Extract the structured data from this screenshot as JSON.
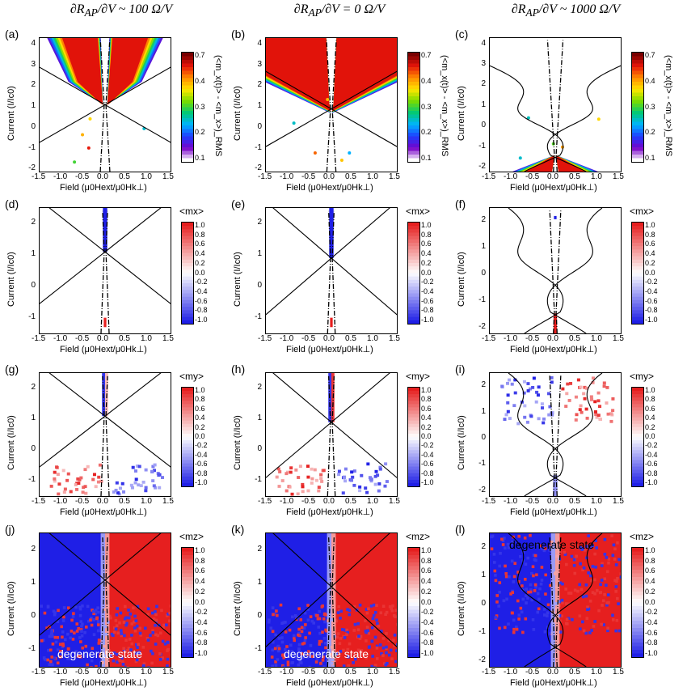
{
  "column_headers": [
    {
      "lhs": "∂R",
      "sub": "AP",
      "den": "∂V",
      "rel": "~ 100",
      "unit_num": "Ω",
      "unit_den": "V"
    },
    {
      "lhs": "∂R",
      "sub": "AP",
      "den": "∂V",
      "rel": "= 0",
      "unit_num": "Ω",
      "unit_den": "V"
    },
    {
      "lhs": "∂R",
      "sub": "AP",
      "den": "∂V",
      "rel": "~ 1000",
      "unit_num": "Ω",
      "unit_den": "V"
    }
  ],
  "axis_text": {
    "ylabel": "Current (I/I",
    "ylabel_sub": "c",
    "ylabel_sup": "0",
    "ylabel_end": ")",
    "xlabel": "Field (μ",
    "xlabel_sub1": "0",
    "xlabel_mid": "H",
    "xlabel_sub2": "ext",
    "xlabel_mid2": "/μ",
    "xlabel_sub3": "0",
    "xlabel_mid3": "H",
    "xlabel_sub4": "k⊥",
    "xlabel_end": ")"
  },
  "colors": {
    "blue": "#1f1fe6",
    "red": "#e61f1f",
    "white": "#ffffff",
    "dark_red": "#7a0000",
    "arrow": "#000000"
  },
  "chart_data": [
    {
      "panel": "(a)",
      "type": "heatmap",
      "quantity": "amplitude",
      "colorbar_title": "(<m_x(t)> - <m_x>)_RMS",
      "colorbar_ticks": [
        "0.7",
        "0.4",
        "0.3",
        "0.2",
        "0.1"
      ],
      "xlim": [
        -1.5,
        1.5
      ],
      "ylim": [
        -2.1,
        4.3
      ],
      "xticks": [
        "-1.5",
        "-1.0",
        "-0.5",
        "0.0",
        "0.5",
        "1.0",
        "1.5"
      ],
      "yticks": [
        "-2",
        "-1",
        "0",
        "1",
        "2",
        "3",
        "4"
      ],
      "crossing_current": 1.1,
      "boundary": "x",
      "region": "up_fan",
      "annotation": ""
    },
    {
      "panel": "(b)",
      "type": "heatmap",
      "quantity": "amplitude",
      "colorbar_title": "(<m_x(t)> - <m_x>)_RMS",
      "colorbar_ticks": [
        "0.7",
        "0.4",
        "0.3",
        "0.2",
        "0.1"
      ],
      "xlim": [
        -1.5,
        1.5
      ],
      "ylim": [
        -2.1,
        4.3
      ],
      "xticks": [
        "-1.5",
        "-1.0",
        "-0.5",
        "0.0",
        "0.5",
        "1.0",
        "1.5"
      ],
      "yticks": [
        "-2",
        "-1",
        "0",
        "1",
        "2",
        "3",
        "4"
      ],
      "crossing_current": 0.9,
      "boundary": "x",
      "region": "up_wide",
      "annotation": ""
    },
    {
      "panel": "(c)",
      "type": "heatmap",
      "quantity": "amplitude",
      "colorbar_title": "(<m_x(t)> - <m_x>)_RMS",
      "colorbar_ticks": [
        "0.7",
        "0.4",
        "0.3",
        "0.2",
        "0.1"
      ],
      "xlim": [
        -1.5,
        1.5
      ],
      "ylim": [
        -2.2,
        4.3
      ],
      "xticks": [
        "-1.5",
        "-1.0",
        "-0.5",
        "0.0",
        "0.5",
        "1.0",
        "1.5"
      ],
      "yticks": [
        "-2",
        "-1",
        "0",
        "1",
        "2",
        "3",
        "4"
      ],
      "crossing_current": -1.4,
      "boundary": "s",
      "region": "down_fan",
      "annotation": ""
    },
    {
      "panel": "(d)",
      "type": "heatmap",
      "quantity": "<mx>",
      "colorbar_title": "<mx>",
      "colorbar_ticks": [
        "1.0",
        "0.8",
        "0.6",
        "0.4",
        "0.2",
        "0.0",
        "-0.2",
        "-0.4",
        "-0.6",
        "-0.8",
        "-1.0"
      ],
      "xlim": [
        -1.5,
        1.5
      ],
      "ylim": [
        -1.5,
        2.5
      ],
      "xticks": [
        "-1.5",
        "-1.0",
        "-0.5",
        "0.0",
        "0.5",
        "1.0",
        "1.5"
      ],
      "yticks": [
        "-1",
        "0",
        "1",
        "2"
      ],
      "crossing_current": 1.1,
      "boundary": "xbend",
      "region": "mx_line",
      "annotation": ""
    },
    {
      "panel": "(e)",
      "type": "heatmap",
      "quantity": "<mx>",
      "colorbar_title": "<mx>",
      "colorbar_ticks": [
        "1.0",
        "0.8",
        "0.6",
        "0.4",
        "0.2",
        "0.0",
        "-0.2",
        "-0.4",
        "-0.6",
        "-0.8",
        "-1.0"
      ],
      "xlim": [
        -1.5,
        1.5
      ],
      "ylim": [
        -1.5,
        2.5
      ],
      "xticks": [
        "-1.5",
        "-1.0",
        "-0.5",
        "0.0",
        "0.5",
        "1.0",
        "1.5"
      ],
      "yticks": [
        "-1",
        "0",
        "1",
        "2"
      ],
      "crossing_current": 0.9,
      "boundary": "x",
      "region": "mx_line",
      "annotation": ""
    },
    {
      "panel": "(f)",
      "type": "heatmap",
      "quantity": "<mx>",
      "colorbar_title": "<mx>",
      "colorbar_ticks": [
        "1.0",
        "0.8",
        "0.6",
        "0.4",
        "0.2",
        "0.0",
        "-0.2",
        "-0.4",
        "-0.6",
        "-0.8",
        "-1.0"
      ],
      "xlim": [
        -1.5,
        1.5
      ],
      "ylim": [
        -2.2,
        2.5
      ],
      "xticks": [
        "-1.5",
        "-1.0",
        "-0.5",
        "0.0",
        "0.5",
        "1.0",
        "1.5"
      ],
      "yticks": [
        "-2",
        "-1",
        "0",
        "1",
        "2"
      ],
      "crossing_current": -1.4,
      "boundary": "s",
      "region": "mx_low",
      "annotation": ""
    },
    {
      "panel": "(g)",
      "type": "heatmap",
      "quantity": "<my>",
      "colorbar_title": "<my>",
      "colorbar_ticks": [
        "1.0",
        "0.8",
        "0.6",
        "0.4",
        "0.2",
        "0.0",
        "-0.2",
        "-0.4",
        "-0.6",
        "-0.8",
        "-1.0"
      ],
      "xlim": [
        -1.5,
        1.5
      ],
      "ylim": [
        -1.5,
        2.5
      ],
      "xticks": [
        "-1.5",
        "-1.0",
        "-0.5",
        "0.0",
        "0.5",
        "1.0",
        "1.5"
      ],
      "yticks": [
        "-1",
        "0",
        "1",
        "2"
      ],
      "crossing_current": 1.1,
      "boundary": "xbend",
      "region": "my_a",
      "annotation": ""
    },
    {
      "panel": "(h)",
      "type": "heatmap",
      "quantity": "<my>",
      "colorbar_title": "<my>",
      "colorbar_ticks": [
        "1.0",
        "0.8",
        "0.6",
        "0.4",
        "0.2",
        "0.0",
        "-0.2",
        "-0.4",
        "-0.6",
        "-0.8",
        "-1.0"
      ],
      "xlim": [
        -1.5,
        1.5
      ],
      "ylim": [
        -1.5,
        2.5
      ],
      "xticks": [
        "-1.5",
        "-1.0",
        "-0.5",
        "0.0",
        "0.5",
        "1.0",
        "1.5"
      ],
      "yticks": [
        "-1",
        "0",
        "1",
        "2"
      ],
      "crossing_current": 0.9,
      "boundary": "x",
      "region": "my_b",
      "annotation": ""
    },
    {
      "panel": "(i)",
      "type": "heatmap",
      "quantity": "<my>",
      "colorbar_title": "<my>",
      "colorbar_ticks": [
        "1.0",
        "0.8",
        "0.6",
        "0.4",
        "0.2",
        "0.0",
        "-0.2",
        "-0.4",
        "-0.6",
        "-0.8",
        "-1.0"
      ],
      "xlim": [
        -1.5,
        1.5
      ],
      "ylim": [
        -2.2,
        2.5
      ],
      "xticks": [
        "-1.5",
        "-1.0",
        "-0.5",
        "0.0",
        "0.5",
        "1.0",
        "1.5"
      ],
      "yticks": [
        "-2",
        "-1",
        "0",
        "1",
        "2"
      ],
      "crossing_current": -1.4,
      "boundary": "s",
      "region": "my_c",
      "annotation": ""
    },
    {
      "panel": "(j)",
      "type": "heatmap",
      "quantity": "<mz>",
      "colorbar_title": "<mz>",
      "colorbar_ticks": [
        "1.0",
        "0.8",
        "0.6",
        "0.4",
        "0.2",
        "0.0",
        "-0.2",
        "-0.4",
        "-0.6",
        "-0.8",
        "-1.0"
      ],
      "xlim": [
        -1.5,
        1.5
      ],
      "ylim": [
        -1.5,
        2.5
      ],
      "xticks": [
        "-1.5",
        "-1.0",
        "-0.5",
        "0.0",
        "0.5",
        "1.0",
        "1.5"
      ],
      "yticks": [
        "-1",
        "0",
        "1",
        "2"
      ],
      "crossing_current": 1.1,
      "boundary": "xbend",
      "region": "mz_a",
      "annotation": "degenerate state"
    },
    {
      "panel": "(k)",
      "type": "heatmap",
      "quantity": "<mz>",
      "colorbar_title": "<mz>",
      "colorbar_ticks": [
        "1.0",
        "0.8",
        "0.6",
        "0.4",
        "0.2",
        "0.0",
        "-0.2",
        "-0.4",
        "-0.6",
        "-0.8",
        "-1.0"
      ],
      "xlim": [
        -1.5,
        1.5
      ],
      "ylim": [
        -1.5,
        2.5
      ],
      "xticks": [
        "-1.5",
        "-1.0",
        "-0.5",
        "0.0",
        "0.5",
        "1.0",
        "1.5"
      ],
      "yticks": [
        "-1",
        "0",
        "1",
        "2"
      ],
      "crossing_current": 0.9,
      "boundary": "x",
      "region": "mz_b",
      "annotation": "degenerate state"
    },
    {
      "panel": "(l)",
      "type": "heatmap",
      "quantity": "<mz>",
      "colorbar_title": "<mz>",
      "colorbar_ticks": [
        "1.0",
        "0.8",
        "0.6",
        "0.4",
        "0.2",
        "0.0",
        "-0.2",
        "-0.4",
        "-0.6",
        "-0.8",
        "-1.0"
      ],
      "xlim": [
        -1.5,
        1.5
      ],
      "ylim": [
        -2.2,
        2.5
      ],
      "xticks": [
        "-1.5",
        "-1.0",
        "-0.5",
        "0.0",
        "0.5",
        "1.0",
        "1.5"
      ],
      "yticks": [
        "-2",
        "-1",
        "0",
        "1",
        "2"
      ],
      "crossing_current": -1.4,
      "boundary": "s",
      "region": "mz_c",
      "annotation": "degenerate state"
    }
  ]
}
